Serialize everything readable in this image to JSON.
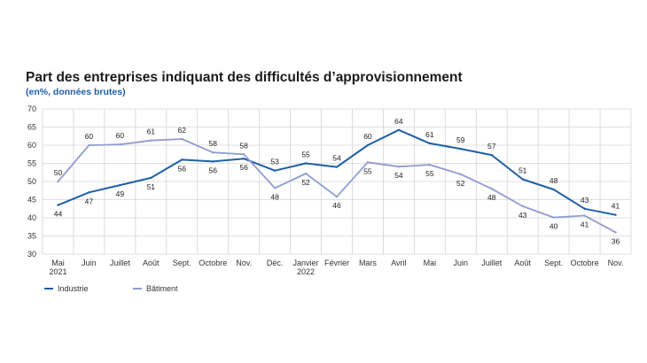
{
  "chart_data": {
    "type": "line",
    "title": "Part des entreprises indiquant des difficultés d’approvisionnement",
    "subtitle": "(en%, données brutes)",
    "categories": [
      [
        "Mai",
        "2021"
      ],
      [
        "Juin"
      ],
      [
        "Juillet"
      ],
      [
        "Août"
      ],
      [
        "Sept."
      ],
      [
        "Octobre"
      ],
      [
        "Nov."
      ],
      [
        "Déc."
      ],
      [
        "Janvier",
        "2022"
      ],
      [
        "Février"
      ],
      [
        "Mars"
      ],
      [
        "Avril"
      ],
      [
        "Mai"
      ],
      [
        "Juin"
      ],
      [
        "Juillet"
      ],
      [
        "Août"
      ],
      [
        "Sept."
      ],
      [
        "Octobre"
      ],
      [
        "Nov."
      ]
    ],
    "ylim": [
      30,
      70
    ],
    "yticks": [
      30,
      35,
      40,
      45,
      50,
      55,
      60,
      65,
      70
    ],
    "grid": true,
    "legend_position": "bottom-left",
    "series": [
      {
        "name": "Industrie",
        "color": "#1f5fa8",
        "values": [
          44,
          47,
          49,
          51,
          56,
          56,
          56,
          53,
          55,
          54,
          60,
          64,
          61,
          59,
          57,
          51,
          48,
          43,
          41
        ],
        "plot_values": [
          43.5,
          47,
          49,
          51,
          56,
          55.5,
          56.3,
          53,
          55,
          54,
          60,
          64.2,
          60.5,
          59,
          57.3,
          50.6,
          47.8,
          42.5,
          40.8
        ],
        "label_pos": [
          "below",
          "below",
          "below",
          "below",
          "below",
          "below",
          "below",
          "above",
          "above",
          "above",
          "above",
          "above",
          "above",
          "above",
          "above",
          "above",
          "above",
          "above",
          "above"
        ]
      },
      {
        "name": "Bâtiment",
        "color": "#8f9cd0",
        "values": [
          50,
          60,
          60,
          61,
          62,
          58,
          58,
          48,
          52,
          46,
          55,
          54,
          55,
          52,
          48,
          43,
          40,
          41,
          36
        ],
        "plot_values": [
          50,
          60,
          60.2,
          61.3,
          61.7,
          58,
          57.5,
          48.2,
          52.2,
          45.8,
          55.3,
          54.1,
          54.6,
          52,
          48,
          43.2,
          40.1,
          40.6,
          36
        ],
        "label_pos": [
          "above",
          "above",
          "above",
          "above",
          "above",
          "above",
          "above",
          "below",
          "below",
          "below",
          "below",
          "below",
          "below",
          "below",
          "below",
          "below",
          "below",
          "below",
          "below"
        ]
      }
    ]
  }
}
